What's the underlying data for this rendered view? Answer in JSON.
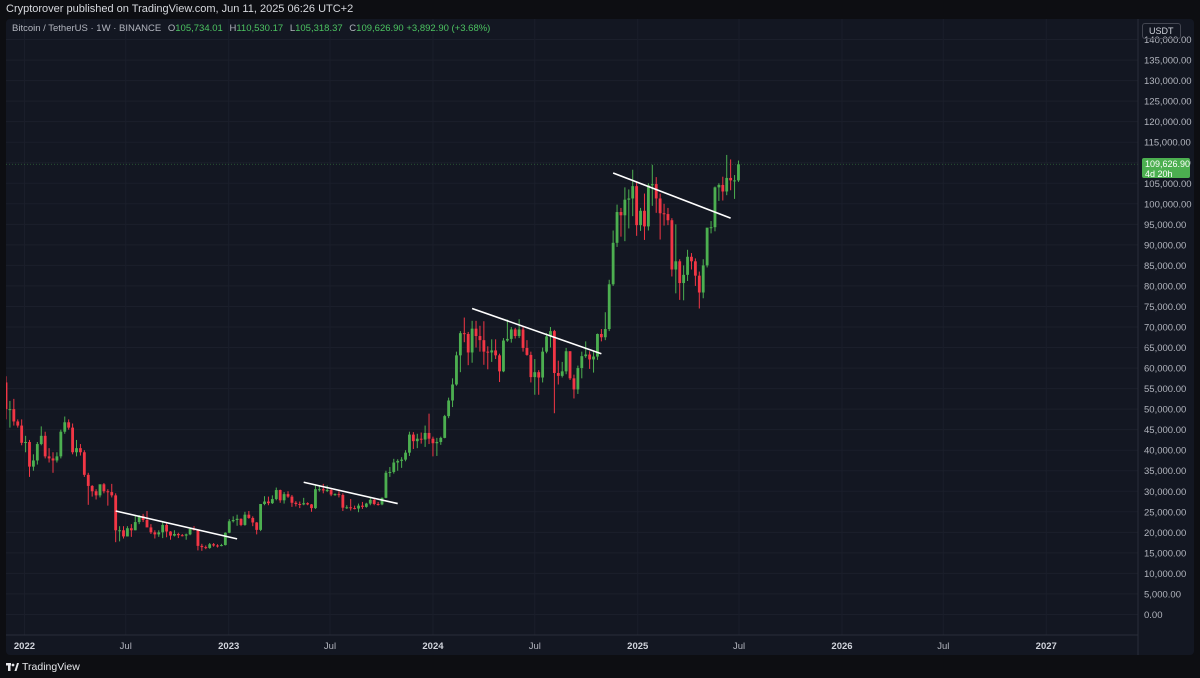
{
  "header": {
    "published": "Cryptorover published on TradingView.com, Jun 11, 2025 06:26 UTC+2"
  },
  "legend": {
    "symbol": "Bitcoin / TetherUS · 1W · BINANCE",
    "open_label": "O",
    "open": "105,734.01",
    "high_label": "H",
    "high": "110,530.17",
    "low_label": "L",
    "low": "105,318.37",
    "close_label": "C",
    "close": "109,626.90",
    "change": "+3,892.90 (+3.68%)"
  },
  "axis": {
    "unit": "USDT"
  },
  "price_tag": {
    "price": "109,626.90",
    "countdown": "4d 20h"
  },
  "footer": {
    "brand": "TradingView"
  },
  "colors": {
    "up": "#4caf50",
    "down": "#f23645",
    "background": "#131722",
    "grid": "#1b1f2b",
    "axis_text": "#b2b5be",
    "trendline": "#ffffff"
  },
  "chart_data": {
    "type": "candlestick",
    "interval": "1W",
    "ylim": [
      -5000,
      145000
    ],
    "y_ticks": [
      0,
      5000,
      10000,
      15000,
      20000,
      25000,
      30000,
      35000,
      40000,
      45000,
      50000,
      55000,
      60000,
      65000,
      70000,
      75000,
      80000,
      85000,
      90000,
      95000,
      100000,
      105000,
      110000,
      115000,
      120000,
      125000,
      130000,
      135000,
      140000
    ],
    "y_tick_labels": [
      "0.00",
      "5,000.00",
      "10,000.00",
      "15,000.00",
      "20,000.00",
      "25,000.00",
      "30,000.00",
      "35,000.00",
      "40,000.00",
      "45,000.00",
      "50,000.00",
      "55,000.00",
      "60,000.00",
      "65,000.00",
      "70,000.00",
      "75,000.00",
      "80,000.00",
      "85,000.00",
      "90,000.00",
      "95,000.00",
      "100,000.00",
      "105,000.00",
      "110,000.00",
      "115,000.00",
      "120,000.00",
      "125,000.00",
      "130,000.00",
      "135,000.00",
      "140,000.00"
    ],
    "x_ticks": [
      {
        "date": "2022-01-01",
        "label": "2022",
        "bold": true
      },
      {
        "date": "2022-07-01",
        "label": "Jul",
        "bold": false
      },
      {
        "date": "2023-01-01",
        "label": "2023",
        "bold": true
      },
      {
        "date": "2023-07-01",
        "label": "Jul",
        "bold": false
      },
      {
        "date": "2024-01-01",
        "label": "2024",
        "bold": true
      },
      {
        "date": "2024-07-01",
        "label": "Jul",
        "bold": false
      },
      {
        "date": "2025-01-01",
        "label": "2025",
        "bold": true
      },
      {
        "date": "2025-07-01",
        "label": "Jul",
        "bold": false
      },
      {
        "date": "2026-01-01",
        "label": "2026",
        "bold": true
      },
      {
        "date": "2026-07-01",
        "label": "Jul",
        "bold": false
      },
      {
        "date": "2027-01-01",
        "label": "2027",
        "bold": true
      }
    ],
    "xlim": [
      "2021-11-29",
      "2027-06-14"
    ],
    "first_week": "2021-11-29",
    "candles": [
      [
        56500,
        58000,
        47500,
        50000
      ],
      [
        50000,
        52000,
        45500,
        50000
      ],
      [
        50000,
        52500,
        46000,
        47000
      ],
      [
        47000,
        47500,
        45500,
        46000
      ],
      [
        46000,
        47500,
        41200,
        41800
      ],
      [
        41800,
        43500,
        39500,
        42000
      ],
      [
        42000,
        42500,
        33500,
        36000
      ],
      [
        36000,
        39000,
        35000,
        37500
      ],
      [
        37500,
        42000,
        36500,
        41500
      ],
      [
        41500,
        45800,
        41200,
        43500
      ],
      [
        43500,
        44500,
        38000,
        38500
      ],
      [
        38500,
        40500,
        37000,
        38000
      ],
      [
        38000,
        39500,
        34500,
        37500
      ],
      [
        37500,
        39500,
        37000,
        38500
      ],
      [
        38500,
        45000,
        38000,
        44500
      ],
      [
        44500,
        48200,
        44000,
        46800
      ],
      [
        46800,
        47500,
        45000,
        45500
      ],
      [
        45500,
        46500,
        39000,
        39500
      ],
      [
        39500,
        42500,
        38500,
        40500
      ],
      [
        40500,
        41500,
        38700,
        39500
      ],
      [
        39500,
        40000,
        33500,
        34000
      ],
      [
        34000,
        34500,
        26700,
        31300
      ],
      [
        31300,
        31500,
        28700,
        30000
      ],
      [
        30000,
        30500,
        28000,
        29000
      ],
      [
        29000,
        31500,
        28500,
        31700
      ],
      [
        31700,
        32000,
        29500,
        30000
      ],
      [
        30000,
        30500,
        26500,
        29800
      ],
      [
        29800,
        31800,
        28500,
        29000
      ],
      [
        29000,
        29500,
        17600,
        20500
      ],
      [
        20500,
        21500,
        17800,
        20500
      ],
      [
        20500,
        21500,
        18500,
        19000
      ],
      [
        19000,
        21500,
        19000,
        21000
      ],
      [
        21000,
        22000,
        18900,
        20500
      ],
      [
        20500,
        24200,
        20500,
        22500
      ],
      [
        22500,
        24200,
        22000,
        24000
      ],
      [
        24000,
        24500,
        22500,
        23000
      ],
      [
        23000,
        25200,
        22600,
        21200
      ],
      [
        21200,
        22000,
        19600,
        20000
      ],
      [
        20000,
        20500,
        18500,
        19500
      ],
      [
        19500,
        20500,
        18900,
        20000
      ],
      [
        20000,
        22500,
        18600,
        21800
      ],
      [
        21800,
        22300,
        18800,
        20200
      ],
      [
        20200,
        20300,
        18200,
        19200
      ],
      [
        19200,
        20500,
        19000,
        19600
      ],
      [
        19600,
        19900,
        18600,
        19300
      ],
      [
        19300,
        19600,
        19000,
        19200
      ],
      [
        19200,
        19700,
        18200,
        19500
      ],
      [
        19500,
        21000,
        19300,
        20800
      ],
      [
        20800,
        21500,
        20400,
        20600
      ],
      [
        20600,
        20700,
        15600,
        16700
      ],
      [
        16700,
        17200,
        15500,
        16400
      ],
      [
        16400,
        16800,
        15900,
        16200
      ],
      [
        16200,
        17400,
        16000,
        17100
      ],
      [
        17100,
        17400,
        16500,
        16800
      ],
      [
        16800,
        17100,
        16300,
        16700
      ],
      [
        16700,
        17200,
        16600,
        16900
      ],
      [
        16900,
        20000,
        16800,
        19900
      ],
      [
        19900,
        23200,
        19800,
        22700
      ],
      [
        22700,
        23900,
        22400,
        23000
      ],
      [
        23000,
        24300,
        21600,
        23300
      ],
      [
        23300,
        23400,
        21500,
        21800
      ],
      [
        21800,
        25000,
        21600,
        24300
      ],
      [
        24300,
        25200,
        23300,
        23500
      ],
      [
        23500,
        23900,
        21500,
        22400
      ],
      [
        22400,
        22500,
        19500,
        20600
      ],
      [
        20600,
        26700,
        20300,
        26900
      ],
      [
        26900,
        28800,
        26600,
        27500
      ],
      [
        27500,
        28700,
        26600,
        27100
      ],
      [
        27100,
        29000,
        26900,
        28100
      ],
      [
        28100,
        30900,
        27800,
        30300
      ],
      [
        30300,
        30400,
        27200,
        27800
      ],
      [
        27800,
        29800,
        27000,
        29300
      ],
      [
        29300,
        30000,
        28400,
        28700
      ],
      [
        28700,
        29100,
        26200,
        27200
      ],
      [
        27200,
        27600,
        26300,
        26900
      ],
      [
        26900,
        27500,
        25900,
        26800
      ],
      [
        26800,
        28400,
        26600,
        27100
      ],
      [
        27100,
        27300,
        26600,
        26800
      ],
      [
        26800,
        26900,
        25000,
        25900
      ],
      [
        25900,
        31400,
        25700,
        30500
      ],
      [
        30500,
        31400,
        29900,
        30500
      ],
      [
        30500,
        31800,
        29500,
        30200
      ],
      [
        30200,
        31400,
        29800,
        30300
      ],
      [
        30300,
        30500,
        28800,
        29200
      ],
      [
        29200,
        29500,
        28900,
        29300
      ],
      [
        29300,
        30000,
        28500,
        29100
      ],
      [
        29100,
        29500,
        25200,
        26000
      ],
      [
        26000,
        26600,
        25700,
        26100
      ],
      [
        26100,
        28100,
        25300,
        25900
      ],
      [
        25900,
        26500,
        25600,
        25800
      ],
      [
        25800,
        27000,
        24900,
        26500
      ],
      [
        26500,
        27400,
        25700,
        26200
      ],
      [
        26200,
        27200,
        26000,
        27000
      ],
      [
        27000,
        28600,
        26600,
        27900
      ],
      [
        27900,
        28200,
        26600,
        26900
      ],
      [
        26900,
        27400,
        26500,
        26800
      ],
      [
        26800,
        28500,
        26600,
        28400
      ],
      [
        28400,
        35000,
        28300,
        34500
      ],
      [
        34500,
        35900,
        33500,
        34700
      ],
      [
        34700,
        37900,
        34300,
        37000
      ],
      [
        37000,
        37800,
        35000,
        37400
      ],
      [
        37400,
        38300,
        35700,
        37700
      ],
      [
        37700,
        40000,
        37300,
        39400
      ],
      [
        39400,
        44500,
        38600,
        43800
      ],
      [
        43800,
        44400,
        40300,
        42200
      ],
      [
        42200,
        44000,
        40500,
        42800
      ],
      [
        42800,
        44300,
        41600,
        42600
      ],
      [
        42600,
        46000,
        40800,
        44200
      ],
      [
        44200,
        48900,
        41500,
        42800
      ],
      [
        42800,
        43300,
        38500,
        41700
      ],
      [
        41700,
        43000,
        38600,
        42000
      ],
      [
        42000,
        43300,
        41300,
        43000
      ],
      [
        43000,
        48600,
        42900,
        48300
      ],
      [
        48300,
        52800,
        47800,
        52100
      ],
      [
        52100,
        57500,
        50500,
        56000
      ],
      [
        56000,
        64000,
        55700,
        63100
      ],
      [
        63100,
        69000,
        59000,
        68500
      ],
      [
        68500,
        72300,
        66300,
        68300
      ],
      [
        68300,
        68800,
        60700,
        63800
      ],
      [
        63800,
        71500,
        61300,
        69600
      ],
      [
        69600,
        71500,
        65000,
        67800
      ],
      [
        67800,
        70300,
        64000,
        66800
      ],
      [
        66800,
        71400,
        60800,
        64000
      ],
      [
        64000,
        65300,
        59700,
        63800
      ],
      [
        63800,
        67000,
        61500,
        64300
      ],
      [
        64300,
        67000,
        62200,
        63100
      ],
      [
        63100,
        63500,
        56600,
        59200
      ],
      [
        59200,
        67300,
        59000,
        66700
      ],
      [
        66700,
        71800,
        66400,
        67100
      ],
      [
        67100,
        70000,
        66200,
        69400
      ],
      [
        69400,
        69800,
        67200,
        67800
      ],
      [
        67800,
        71900,
        67300,
        69400
      ],
      [
        69400,
        70000,
        64000,
        64900
      ],
      [
        64900,
        66800,
        63000,
        63200
      ],
      [
        63200,
        64000,
        56500,
        57800
      ],
      [
        57800,
        62200,
        53500,
        59000
      ],
      [
        59000,
        59500,
        53500,
        57700
      ],
      [
        57700,
        65000,
        56500,
        64000
      ],
      [
        64000,
        68500,
        63600,
        67700
      ],
      [
        67700,
        70000,
        65000,
        69000
      ],
      [
        69000,
        69300,
        49000,
        58800
      ],
      [
        58800,
        61800,
        56000,
        58100
      ],
      [
        58100,
        61500,
        57700,
        59200
      ],
      [
        59200,
        64900,
        58500,
        64100
      ],
      [
        64100,
        64100,
        57100,
        57500
      ],
      [
        57500,
        58400,
        52600,
        54800
      ],
      [
        54800,
        60600,
        53700,
        60000
      ],
      [
        60000,
        64000,
        57500,
        62900
      ],
      [
        62900,
        66500,
        62500,
        63300
      ],
      [
        63300,
        64100,
        59800,
        62100
      ],
      [
        62100,
        64000,
        58900,
        62800
      ],
      [
        62800,
        68400,
        62000,
        68300
      ],
      [
        68300,
        69500,
        66500,
        67500
      ],
      [
        67500,
        73600,
        66800,
        69500
      ],
      [
        69500,
        81500,
        69000,
        80400
      ],
      [
        80400,
        93500,
        80000,
        90500
      ],
      [
        90500,
        99800,
        89500,
        98000
      ],
      [
        98000,
        99000,
        92000,
        97200
      ],
      [
        97200,
        104000,
        90900,
        101000
      ],
      [
        101000,
        103500,
        94000,
        101300
      ],
      [
        101300,
        108300,
        97000,
        104300
      ],
      [
        104300,
        105200,
        92200,
        94800
      ],
      [
        94800,
        99000,
        93400,
        98300
      ],
      [
        98300,
        102500,
        91200,
        94500
      ],
      [
        94500,
        105000,
        93500,
        104500
      ],
      [
        104500,
        109500,
        99500,
        104800
      ],
      [
        104800,
        106500,
        97800,
        101300
      ],
      [
        101300,
        102500,
        91300,
        97700
      ],
      [
        97700,
        100000,
        94700,
        97500
      ],
      [
        97500,
        99000,
        94800,
        96000
      ],
      [
        96000,
        96500,
        82300,
        84000
      ],
      [
        84000,
        95000,
        78200,
        86000
      ],
      [
        86000,
        86500,
        76600,
        80700
      ],
      [
        80700,
        85000,
        76500,
        82700
      ],
      [
        82700,
        88800,
        81200,
        87100
      ],
      [
        87100,
        88000,
        84000,
        86000
      ],
      [
        86000,
        86700,
        80000,
        82500
      ],
      [
        82500,
        83500,
        74500,
        78400
      ],
      [
        78400,
        86500,
        77000,
        85000
      ],
      [
        85000,
        94000,
        84500,
        94200
      ],
      [
        94200,
        95800,
        92800,
        94300
      ],
      [
        94300,
        104200,
        93300,
        104000
      ],
      [
        104000,
        105000,
        100700,
        104600
      ],
      [
        104600,
        106600,
        100800,
        103000
      ],
      [
        103000,
        111900,
        102100,
        106300
      ],
      [
        106300,
        110800,
        103300,
        105700
      ],
      [
        105700,
        107000,
        101200,
        105700
      ],
      [
        105700,
        110530,
        105318,
        109627
      ]
    ],
    "trendlines": [
      {
        "from": [
          "2022-06-13",
          25200
        ],
        "to": [
          "2023-01-16",
          18400
        ]
      },
      {
        "from": [
          "2023-05-15",
          32200
        ],
        "to": [
          "2023-10-30",
          27000
        ]
      },
      {
        "from": [
          "2024-03-11",
          74500
        ],
        "to": [
          "2024-10-28",
          63500
        ]
      },
      {
        "from": [
          "2024-11-18",
          107500
        ],
        "to": [
          "2025-06-16",
          96500
        ]
      }
    ]
  }
}
